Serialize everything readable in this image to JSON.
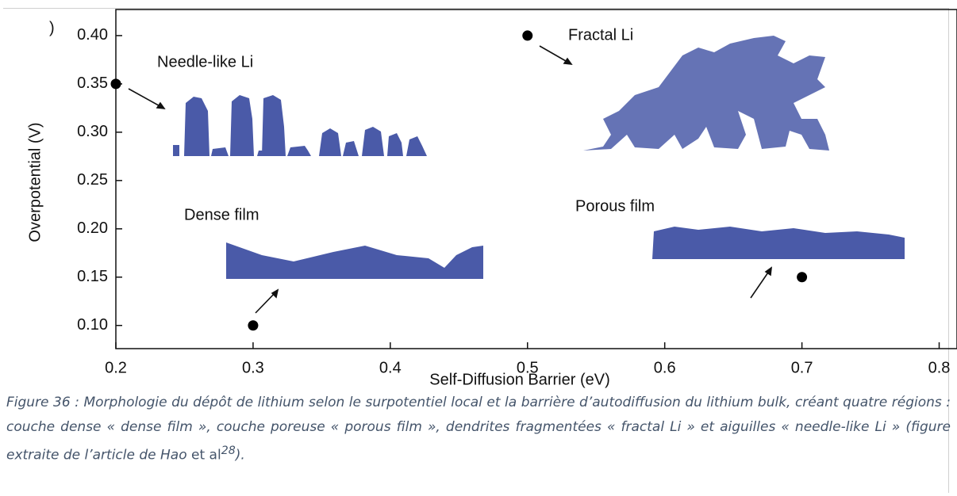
{
  "chart_data": {
    "type": "scatter",
    "panel_label": ")",
    "x_label": "Self-Diffusion Barrier (eV)",
    "y_label": "Overpotential (V)",
    "x": [
      0.2,
      0.5,
      0.3,
      0.7
    ],
    "values": [
      0.35,
      0.4,
      0.1,
      0.15
    ],
    "color": "#000000",
    "xlim": [
      0.2,
      0.813
    ],
    "ylim": [
      0.076,
      0.427
    ],
    "xticks": [
      0.2,
      0.3,
      0.4,
      0.5,
      0.6,
      0.7,
      0.8
    ],
    "yticks": [
      {
        "value": 0.1,
        "label": "0.10"
      },
      0.15,
      {
        "value": 0.2,
        "label": "0.20"
      },
      0.25,
      {
        "value": 0.3,
        "label": "0.30"
      },
      0.35,
      {
        "value": 0.4,
        "label": "0.40"
      }
    ],
    "annotations": [
      "Needle-like Li",
      "Fractal Li",
      "Dense film",
      "Porous film"
    ],
    "caption": [
      "Figure 36 : Morphologie du dépôt de lithium selon le surpotentiel local et la barrière d’autodiffusion du lithium bulk, créant quatre régions : couche dense « dense film », couche poreuse « porous film », dendrites fragmentées « fractal Li » et aiguilles « needle-like Li » (figure extraite de l’article de Hao ",
      "et",
      "al",
      "28",
      ")."
    ]
  }
}
